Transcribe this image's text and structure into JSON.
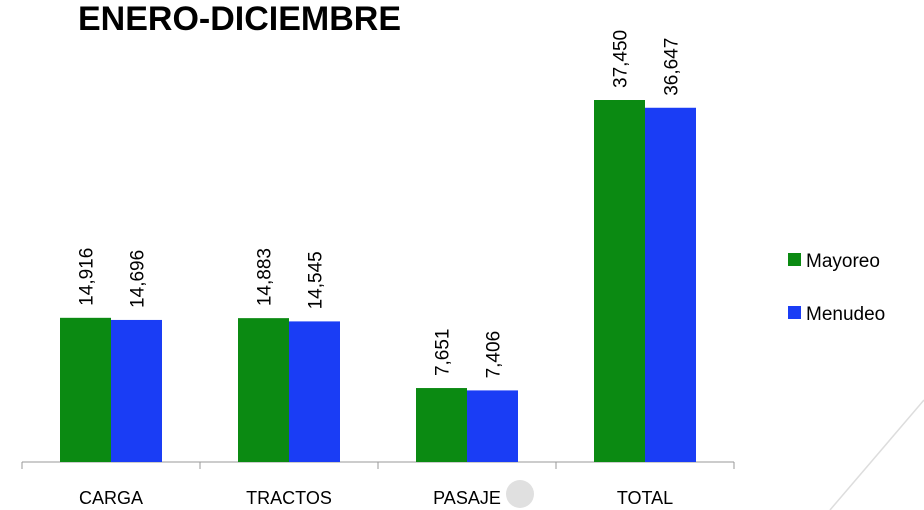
{
  "chart_data": {
    "type": "bar",
    "title": "ENERO-DICIEMBRE",
    "categories": [
      "CARGA",
      "TRACTOS",
      "PASAJE",
      "TOTAL"
    ],
    "series": [
      {
        "name": "Mayoreo",
        "color": "#0b8a12",
        "values": [
          14916,
          14883,
          7651,
          37450
        ],
        "value_labels": [
          "14,916",
          "14,883",
          "7,651",
          "37,450"
        ]
      },
      {
        "name": "Menudeo",
        "color": "#1a3df5",
        "values": [
          14696,
          14545,
          7406,
          36647
        ],
        "value_labels": [
          "14,696",
          "14,545",
          "7,406",
          "36,647"
        ]
      }
    ],
    "legend": "right"
  }
}
